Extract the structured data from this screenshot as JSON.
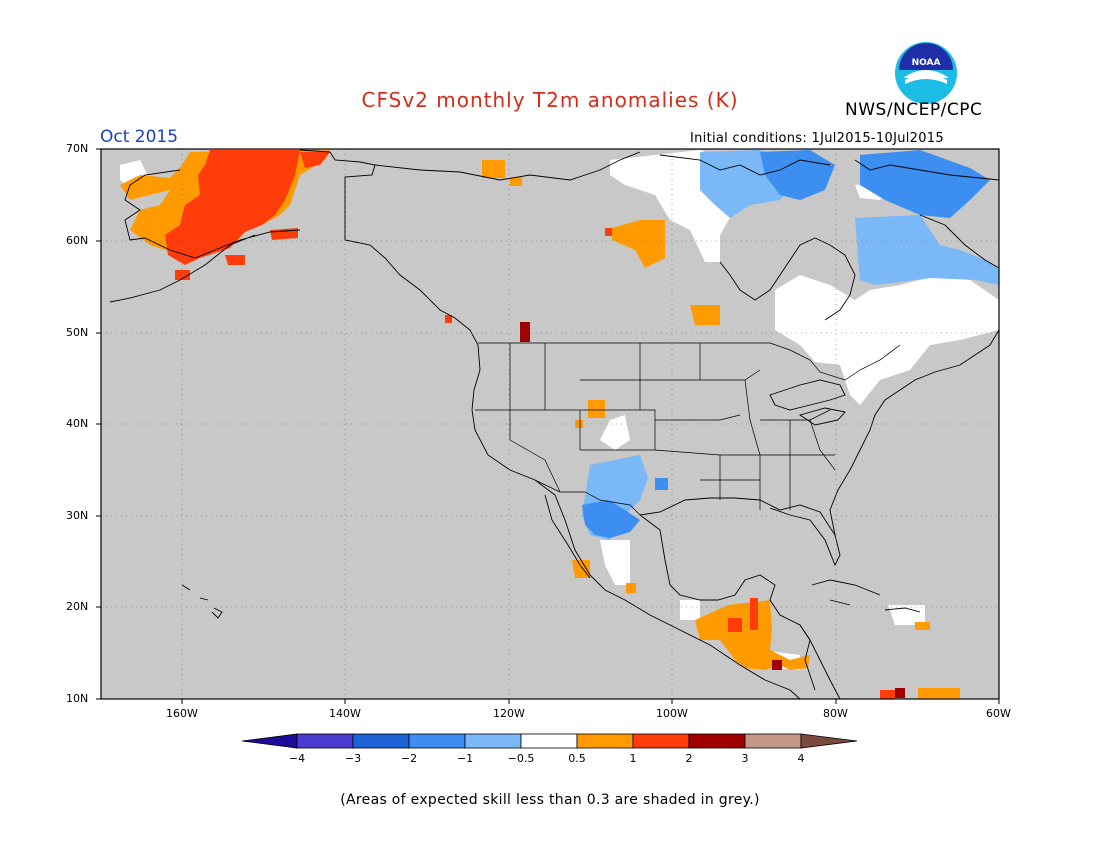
{
  "header": {
    "title": "CFSv2 monthly T2m anomalies (K)",
    "org": "NWS/NCEP/CPC",
    "month": "Oct 2015",
    "initial_conditions": "Initial conditions: 1Jul2015-10Jul2015",
    "logo_text": "NOAA"
  },
  "map": {
    "lat_labels": [
      "70N",
      "60N",
      "50N",
      "40N",
      "30N",
      "20N",
      "10N"
    ],
    "lon_labels": [
      "160W",
      "140W",
      "120W",
      "100W",
      "80W",
      "60W"
    ],
    "lat_range": [
      10,
      70
    ],
    "lon_range": [
      -170,
      -60
    ],
    "grey_color": "#c8c8c8"
  },
  "colorbar": {
    "colors": [
      "#1d0a9a",
      "#4a3ad0",
      "#1e62d8",
      "#3c8ef0",
      "#7ab8f8",
      "#ffffff",
      "#ff9a00",
      "#ff3c0a",
      "#a00000",
      "#c49a86",
      "#7a4a3c"
    ],
    "labels": [
      "−4",
      "−3",
      "−2",
      "−1",
      "−0.5",
      "0.5",
      "1",
      "2",
      "3",
      "4"
    ]
  },
  "note": "(Areas of expected skill less than 0.3 are shaded in grey.)"
}
